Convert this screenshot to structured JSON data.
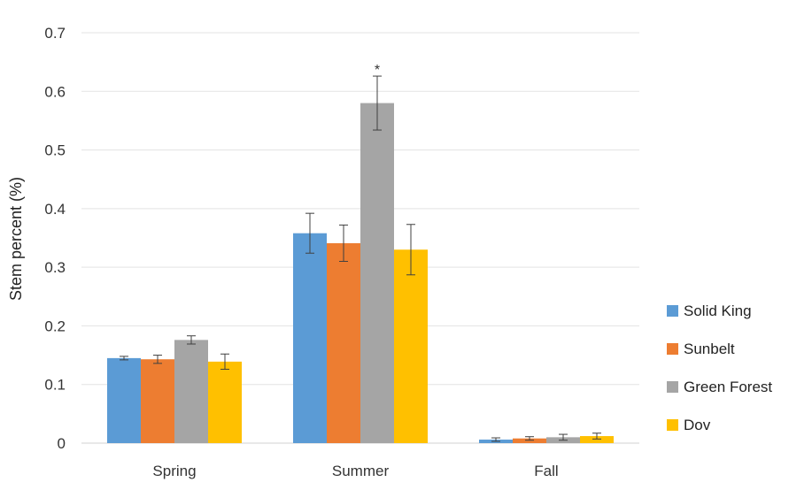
{
  "chart_data": {
    "type": "bar",
    "title": "",
    "xlabel": "",
    "ylabel": "Stem percent (%)",
    "ylim": [
      0,
      0.7
    ],
    "yticks": [
      0,
      0.1,
      0.2,
      0.3,
      0.4,
      0.5,
      0.6,
      0.7
    ],
    "ytick_labels": [
      "0",
      "0.1",
      "0.2",
      "0.3",
      "0.4",
      "0.5",
      "0.6",
      "0.7"
    ],
    "grid": true,
    "legend_position": "right",
    "categories": [
      "Spring",
      "Summer",
      "Fall"
    ],
    "series": [
      {
        "name": "Solid King",
        "color": "#5B9BD5",
        "values": [
          0.145,
          0.358,
          0.006
        ],
        "errors": [
          0.003,
          0.034,
          0.003
        ]
      },
      {
        "name": "Sunbelt",
        "color": "#ED7D31",
        "values": [
          0.143,
          0.341,
          0.008
        ],
        "errors": [
          0.007,
          0.031,
          0.003
        ]
      },
      {
        "name": "Green Forest",
        "color": "#A5A5A5",
        "values": [
          0.176,
          0.58,
          0.01
        ],
        "errors": [
          0.007,
          0.046,
          0.005
        ]
      },
      {
        "name": "Dov",
        "color": "#FFC000",
        "values": [
          0.139,
          0.33,
          0.012
        ],
        "errors": [
          0.013,
          0.043,
          0.005
        ]
      }
    ],
    "annotations": [
      {
        "text": "*",
        "category": "Summer",
        "series": "Green Forest"
      }
    ]
  }
}
